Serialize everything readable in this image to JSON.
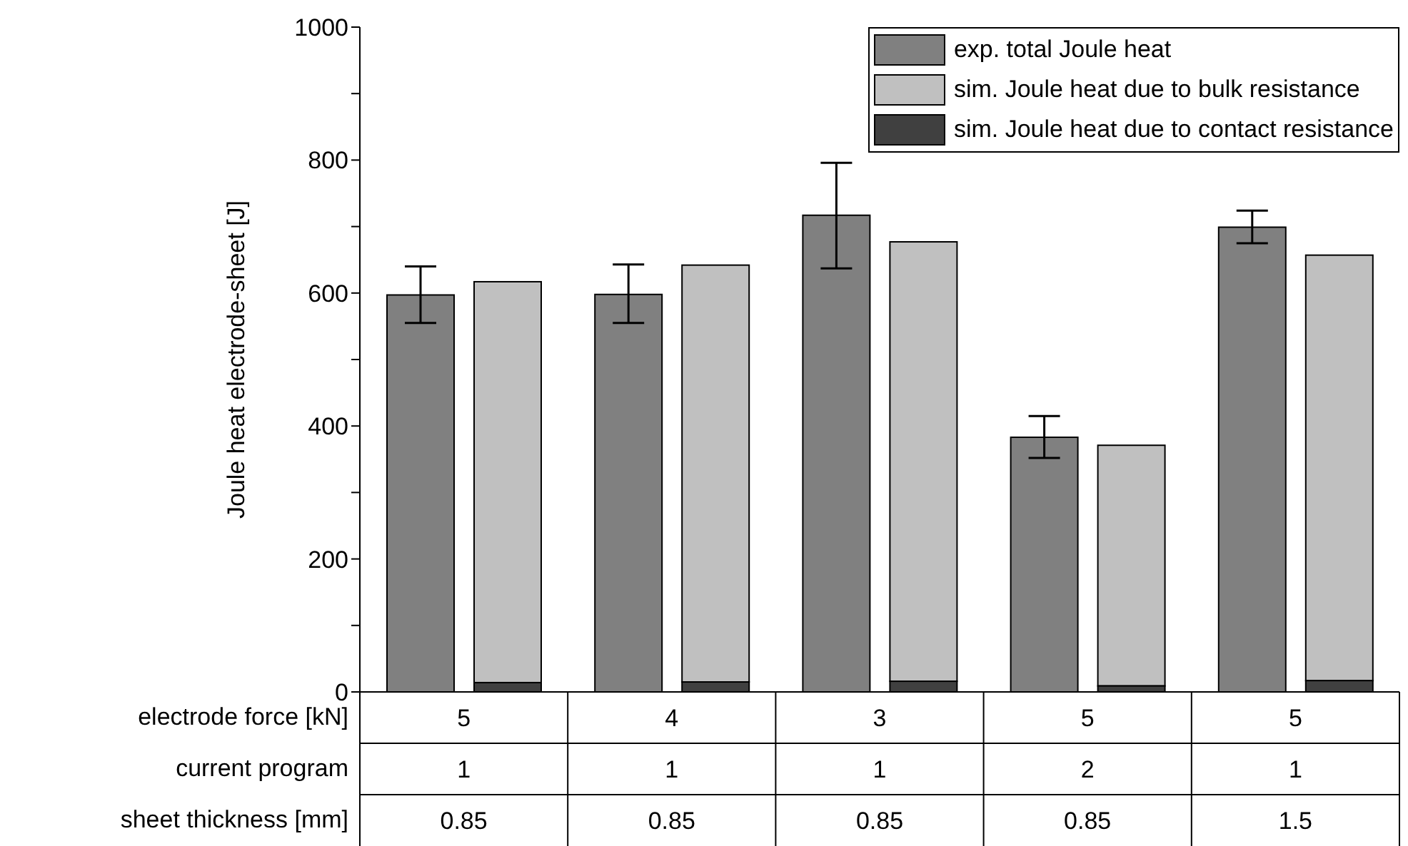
{
  "chart_data": {
    "type": "bar",
    "ylabel": "Joule heat electrode-sheet [J]",
    "categories": [
      "5\n1\n0.85",
      "4\n1\n0.85",
      "3\n1\n0.85",
      "5\n2\n0.85",
      "5\n1\n1.5"
    ],
    "annotations": [
      "electrode force [kN]",
      "current program",
      "sheet thickness [mm]"
    ],
    "series": [
      {
        "name": "exp. total Joule heat",
        "color": "#808080",
        "values": [
          597,
          598,
          717,
          383,
          699
        ],
        "errors": [
          [
            555,
            640
          ],
          [
            555,
            643
          ],
          [
            637,
            796
          ],
          [
            352,
            415
          ],
          [
            675,
            724
          ]
        ]
      },
      {
        "name": "sim. Joule heat due to bulk resistance",
        "color": "#c0c0c0",
        "values": [
          603,
          627,
          661,
          362,
          640
        ],
        "base": [
          14,
          15,
          16,
          9,
          17
        ]
      },
      {
        "name": "sim. Joule heat due to contact resistance",
        "color": "#404040",
        "values": [
          14,
          15,
          16,
          9,
          17
        ]
      }
    ],
    "ylim": [
      0,
      1000
    ],
    "yticks": [
      0,
      {
        "value": 100,
        "label": null
      },
      200,
      {
        "value": 300,
        "label": null
      },
      400,
      {
        "value": 500,
        "label": null
      },
      600,
      {
        "value": 700,
        "label": null
      },
      800,
      {
        "value": 900,
        "label": null
      },
      1000
    ],
    "legend": "top right",
    "grid": false
  }
}
